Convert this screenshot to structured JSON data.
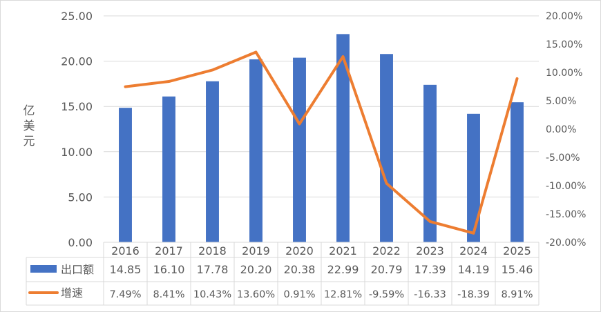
{
  "chart_data": {
    "type": "bar",
    "categories": [
      "2016",
      "2017",
      "2018",
      "2019",
      "2020",
      "2021",
      "2022",
      "2023",
      "2024",
      "2025"
    ],
    "series": [
      {
        "name": "出口额",
        "type": "bar",
        "axis": "left",
        "color": "#4472C4",
        "values": [
          14.85,
          16.1,
          17.78,
          20.2,
          20.38,
          22.99,
          20.79,
          17.39,
          14.19,
          15.46
        ],
        "labels": [
          "14.85",
          "16.10",
          "17.78",
          "20.20",
          "20.38",
          "22.99",
          "20.79",
          "17.39",
          "14.19",
          "15.46"
        ]
      },
      {
        "name": "增速",
        "type": "line",
        "axis": "right",
        "color": "#ED7D31",
        "values": [
          7.49,
          8.41,
          10.43,
          13.6,
          0.91,
          12.81,
          -9.59,
          -16.33,
          -18.39,
          8.91
        ],
        "labels": [
          "7.49%",
          "8.41%",
          "10.43%",
          "13.60%",
          "0.91%",
          "12.81%",
          "-9.59%",
          "-16.33",
          "-18.39",
          "8.91%"
        ]
      }
    ],
    "ylabel": "亿美元",
    "ylim": [
      0,
      25
    ],
    "yticks": [
      "0.00",
      "5.00",
      "10.00",
      "15.00",
      "20.00",
      "25.00"
    ],
    "y2lim": [
      -20,
      20
    ],
    "y2ticks": [
      "-20.00%",
      "-15.00%",
      "-10.00%",
      "-5.00%",
      "0.00%",
      "5.00%",
      "10.00%",
      "15.00%",
      "20.00%"
    ],
    "grid": true,
    "legend": "data-table"
  }
}
